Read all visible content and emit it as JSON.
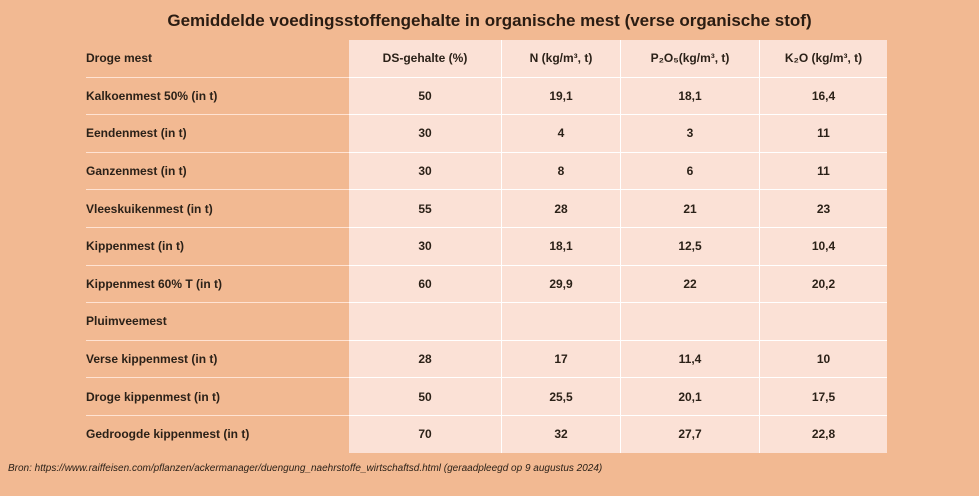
{
  "title": "Gemiddelde voedingsstoffengehalte in organische mest (verse organische stof)",
  "table": {
    "corner": "Droge mest",
    "headers": {
      "ds": "DS-gehalte (%)",
      "n": "N (kg/m³, t)",
      "p": "P₂O₅(kg/m³, t)",
      "k": "K₂O (kg/m³, t)"
    },
    "rows": [
      {
        "label": "Kalkoenmest 50% (in t)",
        "ds": "50",
        "n": "19,1",
        "p": "18,1",
        "k": "16,4"
      },
      {
        "label": "Eendenmest (in t)",
        "ds": "30",
        "n": "4",
        "p": "3",
        "k": "11"
      },
      {
        "label": "Ganzenmest (in t)",
        "ds": "30",
        "n": "8",
        "p": "6",
        "k": "11"
      },
      {
        "label": "Vleeskuikenmest (in t)",
        "ds": "55",
        "n": "28",
        "p": "21",
        "k": "23"
      },
      {
        "label": "Kippenmest (in t)",
        "ds": "30",
        "n": "18,1",
        "p": "12,5",
        "k": "10,4"
      },
      {
        "label": "Kippenmest 60% T (in t)",
        "ds": "60",
        "n": "29,9",
        "p": "22",
        "k": "20,2"
      },
      {
        "label": "Pluimveemest",
        "ds": "",
        "n": "",
        "p": "",
        "k": ""
      },
      {
        "label": "Verse kippenmest (in t)",
        "ds": "28",
        "n": "17",
        "p": "11,4",
        "k": "10"
      },
      {
        "label": "Droge kippenmest (in t)",
        "ds": "50",
        "n": "25,5",
        "p": "20,1",
        "k": "17,5"
      },
      {
        "label": "Gedroogde kippenmest (in t)",
        "ds": "70",
        "n": "32",
        "p": "27,7",
        "k": "22,8"
      }
    ]
  },
  "source": "Bron: https://www.raiffeisen.com/pflanzen/ackermanager/duengung_naehrstoffe_wirtschaftsd.html (geraadpleegd op 9 augustus 2024)"
}
